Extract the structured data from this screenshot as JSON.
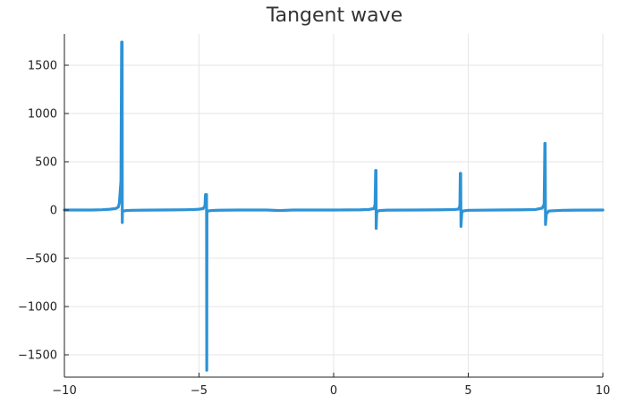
{
  "chart_data": {
    "type": "line",
    "title": "Tangent wave",
    "xlabel": "",
    "ylabel": "",
    "xlim": [
      -10,
      10
    ],
    "ylim": [
      -1700,
      1800
    ],
    "x_ticks": [
      -10,
      -5,
      0,
      5,
      10
    ],
    "x_tick_labels": [
      "−10",
      "−5",
      "0",
      "5",
      "10"
    ],
    "y_ticks": [
      -1500,
      -1000,
      -500,
      0,
      500,
      1000,
      1500
    ],
    "y_tick_labels": [
      "−1500",
      "−1000",
      "−500",
      "0",
      "500",
      "1000",
      "1500"
    ],
    "grid": true,
    "legend": "none",
    "series": [
      {
        "color": "#2e93d6",
        "x": [
          -10,
          -9,
          -8.6,
          -8.3,
          -8.1,
          -8.0,
          -7.96,
          -7.9,
          -7.875,
          -7.855,
          -7.85,
          -7.845,
          -7.8,
          -7.7,
          -7.5,
          -7.0,
          -6.5,
          -6.0,
          -5.5,
          -5.2,
          -5.0,
          -4.85,
          -4.78,
          -4.76,
          -4.72,
          -4.712,
          -4.705,
          -4.7,
          -4.65,
          -4.55,
          -4.3,
          -4.0,
          -3.5,
          -3.0,
          -2.5,
          -2.0,
          -1.5,
          -1.0,
          -0.5,
          0,
          0.5,
          1.0,
          1.3,
          1.5,
          1.54,
          1.56,
          1.575,
          1.58,
          1.6,
          1.62,
          1.7,
          2.0,
          3.0,
          4.0,
          4.5,
          4.65,
          4.69,
          4.705,
          4.72,
          4.73,
          4.76,
          4.8,
          5.0,
          6.0,
          7.0,
          7.5,
          7.75,
          7.82,
          7.845,
          7.855,
          7.87,
          7.9,
          8.0,
          8.5,
          9.0,
          10
        ],
        "y": [
          0,
          0,
          3,
          8,
          15,
          30,
          70,
          300,
          1740,
          1740,
          -130,
          -20,
          -10,
          -5,
          -3,
          -1,
          0,
          1,
          3,
          5,
          8,
          15,
          40,
          160,
          160,
          -1660,
          -20,
          -15,
          -10,
          -5,
          -2,
          -1,
          0,
          0,
          0,
          -5,
          0,
          0,
          0,
          0,
          1,
          2,
          5,
          15,
          60,
          410,
          410,
          -190,
          -30,
          -15,
          -5,
          -1,
          0,
          2,
          5,
          10,
          50,
          380,
          380,
          -170,
          -30,
          -10,
          -3,
          0,
          2,
          5,
          20,
          60,
          690,
          690,
          -150,
          -40,
          -10,
          -3,
          -1,
          0
        ]
      }
    ]
  }
}
